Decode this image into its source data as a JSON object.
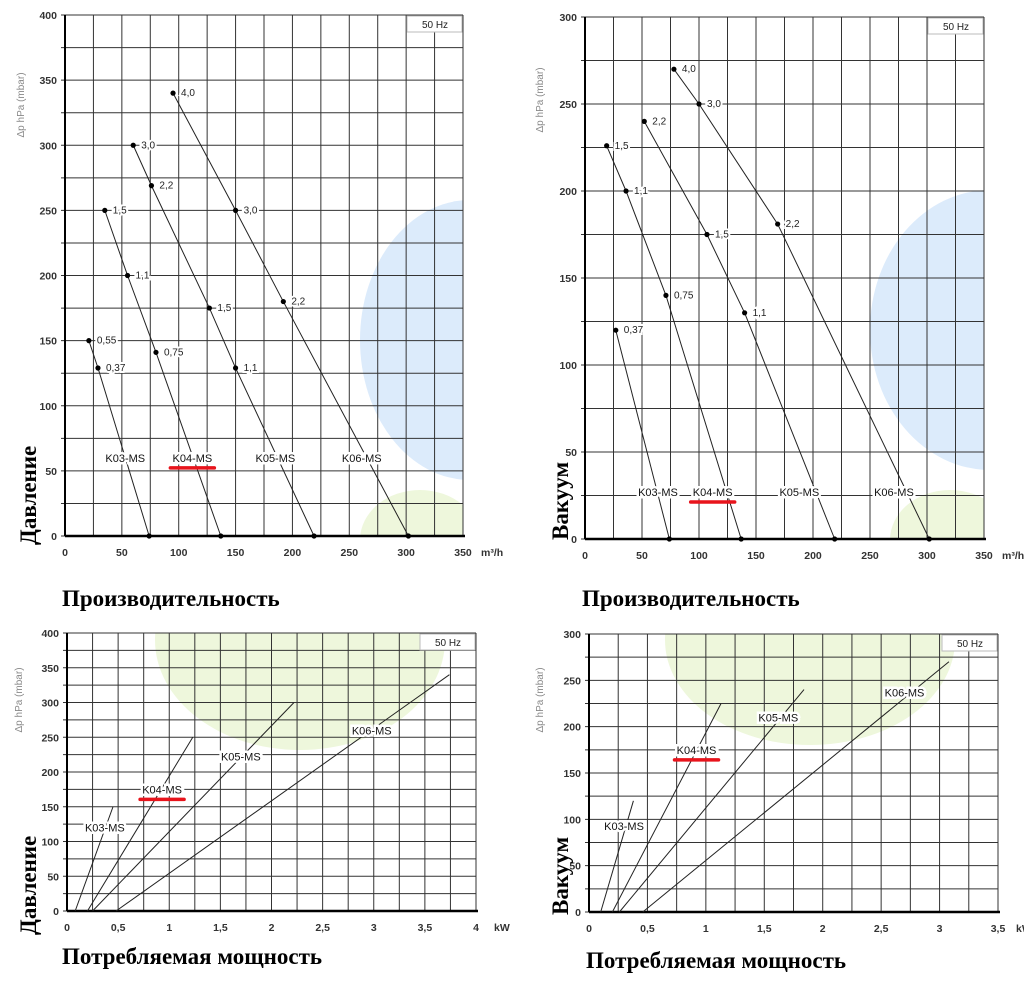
{
  "highlight_color": "#e8141c",
  "highlight_series": "K04-MS",
  "chart_data": [
    {
      "type": "line",
      "title": "",
      "xlabel": "Производительность",
      "ylabel": "Δp hPa (mbar)",
      "side_label": "Давление",
      "x_unit": "m³/h",
      "badge": "50 Hz",
      "xlim": [
        0,
        350
      ],
      "ylim": [
        0,
        400
      ],
      "grid": true,
      "xticks": [
        0,
        50,
        100,
        150,
        200,
        250,
        300,
        350
      ],
      "xtick_labels": [
        "0",
        "50",
        "100",
        "150",
        "200",
        "250",
        "300",
        "350"
      ],
      "yticks": [
        0,
        50,
        100,
        150,
        200,
        250,
        300,
        350,
        400
      ],
      "ytick_labels": [
        "0",
        "50",
        "100",
        "150",
        "200",
        "250",
        "300",
        "350",
        "400"
      ],
      "series": [
        {
          "name": "K03-MS",
          "points": [
            {
              "x": 21,
              "y": 150,
              "label": "0,55"
            },
            {
              "x": 29,
              "y": 129,
              "label": "0,37"
            },
            {
              "x": 74,
              "y": 0,
              "label": ""
            }
          ]
        },
        {
          "name": "K04-MS",
          "points": [
            {
              "x": 35,
              "y": 250,
              "label": "1,5"
            },
            {
              "x": 55,
              "y": 200,
              "label": "1,1"
            },
            {
              "x": 80,
              "y": 141,
              "label": "0,75"
            },
            {
              "x": 137,
              "y": 0,
              "label": ""
            }
          ]
        },
        {
          "name": "K05-MS",
          "points": [
            {
              "x": 60,
              "y": 300,
              "label": "3,0"
            },
            {
              "x": 76,
              "y": 269,
              "label": "2,2"
            },
            {
              "x": 127,
              "y": 175,
              "label": "1,5"
            },
            {
              "x": 150,
              "y": 129,
              "label": "1,1"
            },
            {
              "x": 219,
              "y": 0,
              "label": ""
            }
          ]
        },
        {
          "name": "K06-MS",
          "points": [
            {
              "x": 95,
              "y": 340,
              "label": "4,0"
            },
            {
              "x": 150,
              "y": 250,
              "label": "3,0"
            },
            {
              "x": 192,
              "y": 180,
              "label": "2,2"
            },
            {
              "x": 302,
              "y": 0,
              "label": ""
            }
          ]
        }
      ]
    },
    {
      "type": "line",
      "title": "",
      "xlabel": "Производительность",
      "ylabel": "Δp hPa (mbar)",
      "side_label": "Вакуум",
      "x_unit": "m³/h",
      "badge": "50 Hz",
      "xlim": [
        0,
        350
      ],
      "ylim": [
        0,
        300
      ],
      "grid": true,
      "xticks": [
        0,
        50,
        100,
        150,
        200,
        250,
        300,
        350
      ],
      "xtick_labels": [
        "0",
        "50",
        "100",
        "150",
        "200",
        "250",
        "300",
        "350"
      ],
      "yticks": [
        0,
        50,
        100,
        150,
        200,
        250,
        300
      ],
      "ytick_labels": [
        "0",
        "50",
        "100",
        "150",
        "200",
        "250",
        "300"
      ],
      "series": [
        {
          "name": "K03-MS",
          "points": [
            {
              "x": 27,
              "y": 120,
              "label": "0,37"
            },
            {
              "x": 74,
              "y": 0,
              "label": ""
            }
          ]
        },
        {
          "name": "K04-MS",
          "points": [
            {
              "x": 19,
              "y": 226,
              "label": "1,5"
            },
            {
              "x": 36,
              "y": 200,
              "label": "1,1"
            },
            {
              "x": 71,
              "y": 140,
              "label": "0,75"
            },
            {
              "x": 137,
              "y": 0,
              "label": ""
            }
          ]
        },
        {
          "name": "K05-MS",
          "points": [
            {
              "x": 52,
              "y": 240,
              "label": "2,2"
            },
            {
              "x": 107,
              "y": 175,
              "label": "1,5"
            },
            {
              "x": 140,
              "y": 130,
              "label": "1,1"
            },
            {
              "x": 219,
              "y": 0,
              "label": ""
            }
          ]
        },
        {
          "name": "K06-MS",
          "points": [
            {
              "x": 78,
              "y": 270,
              "label": "4,0"
            },
            {
              "x": 100,
              "y": 250,
              "label": "3,0"
            },
            {
              "x": 169,
              "y": 181,
              "label": "2,2"
            },
            {
              "x": 302,
              "y": 0,
              "label": ""
            }
          ]
        }
      ]
    },
    {
      "type": "line",
      "title": "",
      "xlabel": "Потребляемая мощность",
      "ylabel": "Δp hPa (mbar)",
      "side_label": "Давление",
      "x_unit": "kW",
      "badge": "50 Hz",
      "xlim": [
        0,
        4
      ],
      "ylim": [
        0,
        400
      ],
      "grid": true,
      "xticks": [
        0,
        0.5,
        1,
        1.5,
        2,
        2.5,
        3,
        3.5,
        4
      ],
      "xtick_labels": [
        "0",
        "0,5",
        "1",
        "1,5",
        "2",
        "2,5",
        "3",
        "3,5",
        "4"
      ],
      "yticks": [
        0,
        50,
        100,
        150,
        200,
        250,
        300,
        350,
        400
      ],
      "ytick_labels": [
        "0",
        "50",
        "100",
        "150",
        "200",
        "250",
        "300",
        "350",
        "400"
      ],
      "series": [
        {
          "name": "K03-MS",
          "points": [
            {
              "x": 0.08,
              "y": 0
            },
            {
              "x": 0.45,
              "y": 150
            }
          ]
        },
        {
          "name": "K04-MS",
          "points": [
            {
              "x": 0.2,
              "y": 0
            },
            {
              "x": 1.23,
              "y": 250
            }
          ]
        },
        {
          "name": "K05-MS",
          "points": [
            {
              "x": 0.25,
              "y": 0
            },
            {
              "x": 2.22,
              "y": 300
            }
          ]
        },
        {
          "name": "K06-MS",
          "points": [
            {
              "x": 0.48,
              "y": 0
            },
            {
              "x": 3.74,
              "y": 340
            }
          ]
        }
      ]
    },
    {
      "type": "line",
      "title": "",
      "xlabel": "Потребляемая мощность",
      "ylabel": "Δp hPa (mbar)",
      "side_label": "Вакуум",
      "x_unit": "kW",
      "badge": "50 Hz",
      "xlim": [
        0,
        3.5
      ],
      "ylim": [
        0,
        300
      ],
      "grid": true,
      "xticks": [
        0,
        0.5,
        1,
        1.5,
        2,
        2.5,
        3,
        3.5
      ],
      "xtick_labels": [
        "0",
        "0,5",
        "1",
        "1,5",
        "2",
        "2,5",
        "3",
        "3,5"
      ],
      "yticks": [
        0,
        50,
        100,
        150,
        200,
        250,
        300
      ],
      "ytick_labels": [
        "0",
        "50",
        "100",
        "150",
        "200",
        "250",
        "300"
      ],
      "series": [
        {
          "name": "K03-MS",
          "points": [
            {
              "x": 0.1,
              "y": 0
            },
            {
              "x": 0.38,
              "y": 120
            }
          ]
        },
        {
          "name": "K04-MS",
          "points": [
            {
              "x": 0.2,
              "y": 0
            },
            {
              "x": 1.13,
              "y": 225
            }
          ]
        },
        {
          "name": "K05-MS",
          "points": [
            {
              "x": 0.26,
              "y": 0
            },
            {
              "x": 1.84,
              "y": 240
            }
          ]
        },
        {
          "name": "K06-MS",
          "points": [
            {
              "x": 0.46,
              "y": 0
            },
            {
              "x": 3.08,
              "y": 270
            }
          ]
        }
      ]
    }
  ]
}
